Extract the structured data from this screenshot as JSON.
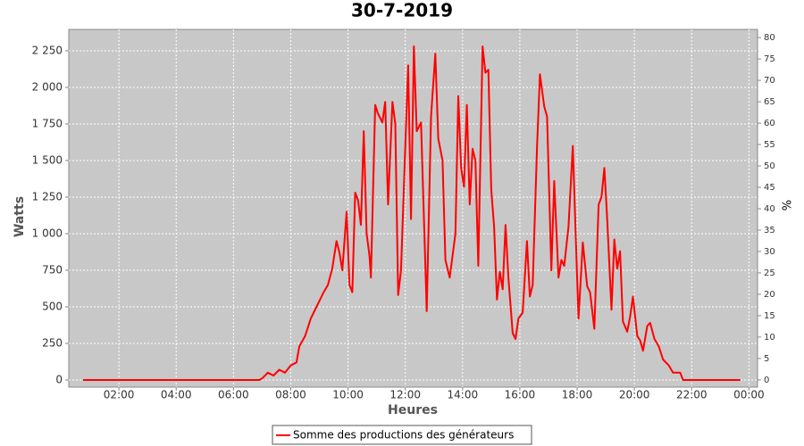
{
  "chart_data": {
    "type": "line",
    "title": "30-7-2019",
    "x_label": "Heures",
    "y_label": "Watts",
    "y2_label": "%",
    "grid": true,
    "legend": "bottom",
    "x": [
      0.75,
      3.0,
      5.0,
      6.0,
      6.9,
      7.0,
      7.2,
      7.4,
      7.6,
      7.8,
      8.0,
      8.2,
      8.3,
      8.5,
      8.7,
      8.9,
      9.0,
      9.15,
      9.3,
      9.45,
      9.6,
      9.7,
      9.8,
      9.95,
      10.05,
      10.15,
      10.25,
      10.35,
      10.45,
      10.55,
      10.65,
      10.75,
      10.8,
      10.95,
      11.05,
      11.2,
      11.3,
      11.4,
      11.55,
      11.65,
      11.75,
      11.85,
      12.0,
      12.1,
      12.2,
      12.3,
      12.4,
      12.55,
      12.75,
      12.9,
      13.05,
      13.15,
      13.3,
      13.4,
      13.55,
      13.75,
      13.85,
      13.95,
      14.05,
      14.15,
      14.25,
      14.35,
      14.45,
      14.55,
      14.7,
      14.8,
      14.9,
      15.0,
      15.1,
      15.2,
      15.3,
      15.4,
      15.5,
      15.6,
      15.75,
      15.85,
      15.95,
      16.1,
      16.25,
      16.35,
      16.45,
      16.6,
      16.7,
      16.85,
      16.95,
      17.1,
      17.2,
      17.35,
      17.45,
      17.55,
      17.7,
      17.85,
      17.95,
      18.05,
      18.2,
      18.35,
      18.45,
      18.6,
      18.75,
      18.85,
      18.95,
      19.05,
      19.2,
      19.3,
      19.4,
      19.5,
      19.6,
      19.75,
      19.85,
      19.95,
      20.1,
      20.2,
      20.3,
      20.45,
      20.55,
      20.7,
      20.85,
      21.0,
      21.2,
      21.35,
      21.6,
      21.7,
      23.7
    ],
    "series": [
      {
        "name": "Somme des productions des  générateurs",
        "color": "#ff0000",
        "values": [
          0,
          0,
          0,
          0,
          0,
          10,
          50,
          30,
          70,
          50,
          100,
          120,
          230,
          300,
          420,
          500,
          540,
          600,
          650,
          760,
          950,
          870,
          750,
          1150,
          650,
          600,
          1280,
          1230,
          1060,
          1700,
          1000,
          850,
          700,
          1880,
          1820,
          1760,
          1900,
          1200,
          1900,
          1750,
          580,
          750,
          1600,
          2150,
          1100,
          2280,
          1700,
          1760,
          470,
          1800,
          2230,
          1650,
          1500,
          820,
          700,
          1000,
          1940,
          1450,
          1320,
          1880,
          1200,
          1580,
          1500,
          780,
          2280,
          2100,
          2120,
          1300,
          1050,
          550,
          740,
          620,
          1060,
          700,
          320,
          280,
          420,
          460,
          950,
          570,
          650,
          1600,
          2090,
          1870,
          1800,
          750,
          1360,
          700,
          820,
          780,
          1050,
          1600,
          1000,
          420,
          940,
          640,
          600,
          350,
          1200,
          1250,
          1450,
          1100,
          480,
          960,
          760,
          880,
          400,
          330,
          430,
          570,
          300,
          270,
          200,
          370,
          390,
          280,
          230,
          140,
          100,
          50,
          50,
          0,
          0
        ]
      }
    ],
    "xlim": [
      0.25,
      24.3
    ],
    "xticks": [
      {
        "value": 2,
        "label": "02:00"
      },
      {
        "value": 4,
        "label": "04:00"
      },
      {
        "value": 6,
        "label": "06:00"
      },
      {
        "value": 8,
        "label": "08:00"
      },
      {
        "value": 10,
        "label": "10:00"
      },
      {
        "value": 12,
        "label": "12:00"
      },
      {
        "value": 14,
        "label": "14:00"
      },
      {
        "value": 16,
        "label": "16:00"
      },
      {
        "value": 18,
        "label": "18:00"
      },
      {
        "value": 20,
        "label": "20:00"
      },
      {
        "value": 22,
        "label": "22:00"
      },
      {
        "value": 24,
        "label": "00:00"
      }
    ],
    "ylim": [
      -49,
      2396
    ],
    "yticks": [
      0,
      250,
      500,
      750,
      {
        "value": 1000,
        "label": "1 000"
      },
      {
        "value": 1250,
        "label": "1 250"
      },
      {
        "value": 1500,
        "label": "1 500"
      },
      {
        "value": 1750,
        "label": "1 750"
      },
      {
        "value": 2000,
        "label": "2 000"
      },
      {
        "value": 2250,
        "label": "2 250"
      }
    ],
    "y2lim": [
      -1.7,
      81.9
    ],
    "y2ticks": [
      0,
      5,
      10,
      15,
      20,
      25,
      30,
      35,
      40,
      45,
      50,
      55,
      60,
      65,
      70,
      75,
      80
    ]
  }
}
